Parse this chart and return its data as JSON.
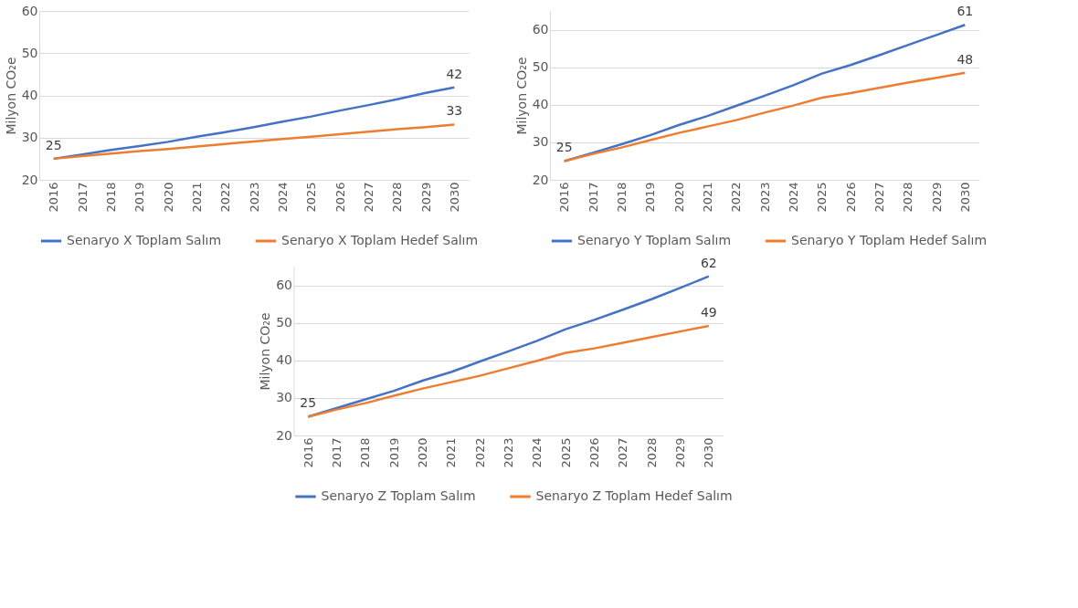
{
  "chart_data": [
    {
      "type": "line",
      "ylabel": "Milyon CO₂e",
      "categories": [
        "2016",
        "2017",
        "2018",
        "2019",
        "2020",
        "2021",
        "2022",
        "2023",
        "2024",
        "2025",
        "2026",
        "2027",
        "2028",
        "2029",
        "2030"
      ],
      "ylim": [
        20,
        60
      ],
      "yticks": [
        20,
        30,
        40,
        50,
        60
      ],
      "grid": "y",
      "legend": "bottom",
      "series": [
        {
          "name": "Senaryo X Toplam Salım",
          "color": "#4472c4",
          "values": [
            25,
            26.0,
            27.1,
            28.0,
            29.0,
            30.2,
            31.3,
            32.5,
            33.8,
            35.0,
            36.4,
            37.7,
            39.1,
            40.6,
            41.9
          ],
          "value_labels": [
            "25",
            null,
            null,
            null,
            null,
            null,
            null,
            null,
            null,
            null,
            null,
            null,
            null,
            null,
            "42"
          ]
        },
        {
          "name": "Senaryo X Toplam Hedef Salım",
          "color": "#ed7d31",
          "values": [
            25,
            25.6,
            26.2,
            26.8,
            27.3,
            27.9,
            28.5,
            29.1,
            29.7,
            30.2,
            30.8,
            31.4,
            32.0,
            32.5,
            33.1
          ],
          "value_labels": [
            null,
            null,
            null,
            null,
            null,
            null,
            null,
            null,
            null,
            null,
            null,
            null,
            null,
            null,
            "33"
          ]
        }
      ]
    },
    {
      "type": "line",
      "ylabel": "Milyon CO₂e",
      "categories": [
        "2016",
        "2017",
        "2018",
        "2019",
        "2020",
        "2021",
        "2022",
        "2023",
        "2024",
        "2025",
        "2026",
        "2027",
        "2028",
        "2029",
        "2030"
      ],
      "ylim": [
        20,
        65
      ],
      "yticks": [
        20,
        30,
        40,
        50,
        60
      ],
      "grid": "y",
      "legend": "bottom",
      "series": [
        {
          "name": "Senaryo Y Toplam Salım",
          "color": "#4472c4",
          "values": [
            25,
            27.2,
            29.5,
            31.9,
            34.6,
            37.0,
            39.7,
            42.4,
            45.2,
            48.3,
            50.6,
            53.2,
            55.9,
            58.6,
            61.3
          ],
          "value_labels": [
            "25",
            null,
            null,
            null,
            null,
            null,
            null,
            null,
            null,
            null,
            null,
            null,
            null,
            null,
            "61"
          ]
        },
        {
          "name": "Senaryo Y Toplam Hedef Salım",
          "color": "#ed7d31",
          "values": [
            25,
            26.9,
            28.6,
            30.6,
            32.5,
            34.2,
            35.9,
            37.9,
            39.8,
            41.9,
            43.1,
            44.5,
            45.9,
            47.2,
            48.5
          ],
          "value_labels": [
            null,
            null,
            null,
            null,
            null,
            null,
            null,
            null,
            null,
            null,
            null,
            null,
            null,
            null,
            "48"
          ]
        }
      ]
    },
    {
      "type": "line",
      "ylabel": "Milyon CO₂e",
      "categories": [
        "2016",
        "2017",
        "2018",
        "2019",
        "2020",
        "2021",
        "2022",
        "2023",
        "2024",
        "2025",
        "2026",
        "2027",
        "2028",
        "2029",
        "2030"
      ],
      "ylim": [
        20,
        65
      ],
      "yticks": [
        20,
        30,
        40,
        50,
        60
      ],
      "grid": "y",
      "legend": "bottom",
      "series": [
        {
          "name": "Senaryo Z Toplam Salım",
          "color": "#4472c4",
          "values": [
            25,
            27.3,
            29.6,
            31.9,
            34.6,
            36.9,
            39.7,
            42.4,
            45.2,
            48.3,
            50.8,
            53.5,
            56.3,
            59.3,
            62.4
          ],
          "value_labels": [
            "25",
            null,
            null,
            null,
            null,
            null,
            null,
            null,
            null,
            null,
            null,
            null,
            null,
            null,
            "62"
          ]
        },
        {
          "name": "Senaryo Z Toplam Hedef Salım",
          "color": "#ed7d31",
          "values": [
            25,
            26.9,
            28.6,
            30.6,
            32.5,
            34.2,
            35.9,
            37.9,
            39.9,
            42.0,
            43.2,
            44.7,
            46.2,
            47.7,
            49.2
          ],
          "value_labels": [
            null,
            null,
            null,
            null,
            null,
            null,
            null,
            null,
            null,
            null,
            null,
            null,
            null,
            null,
            "49"
          ]
        }
      ]
    }
  ]
}
